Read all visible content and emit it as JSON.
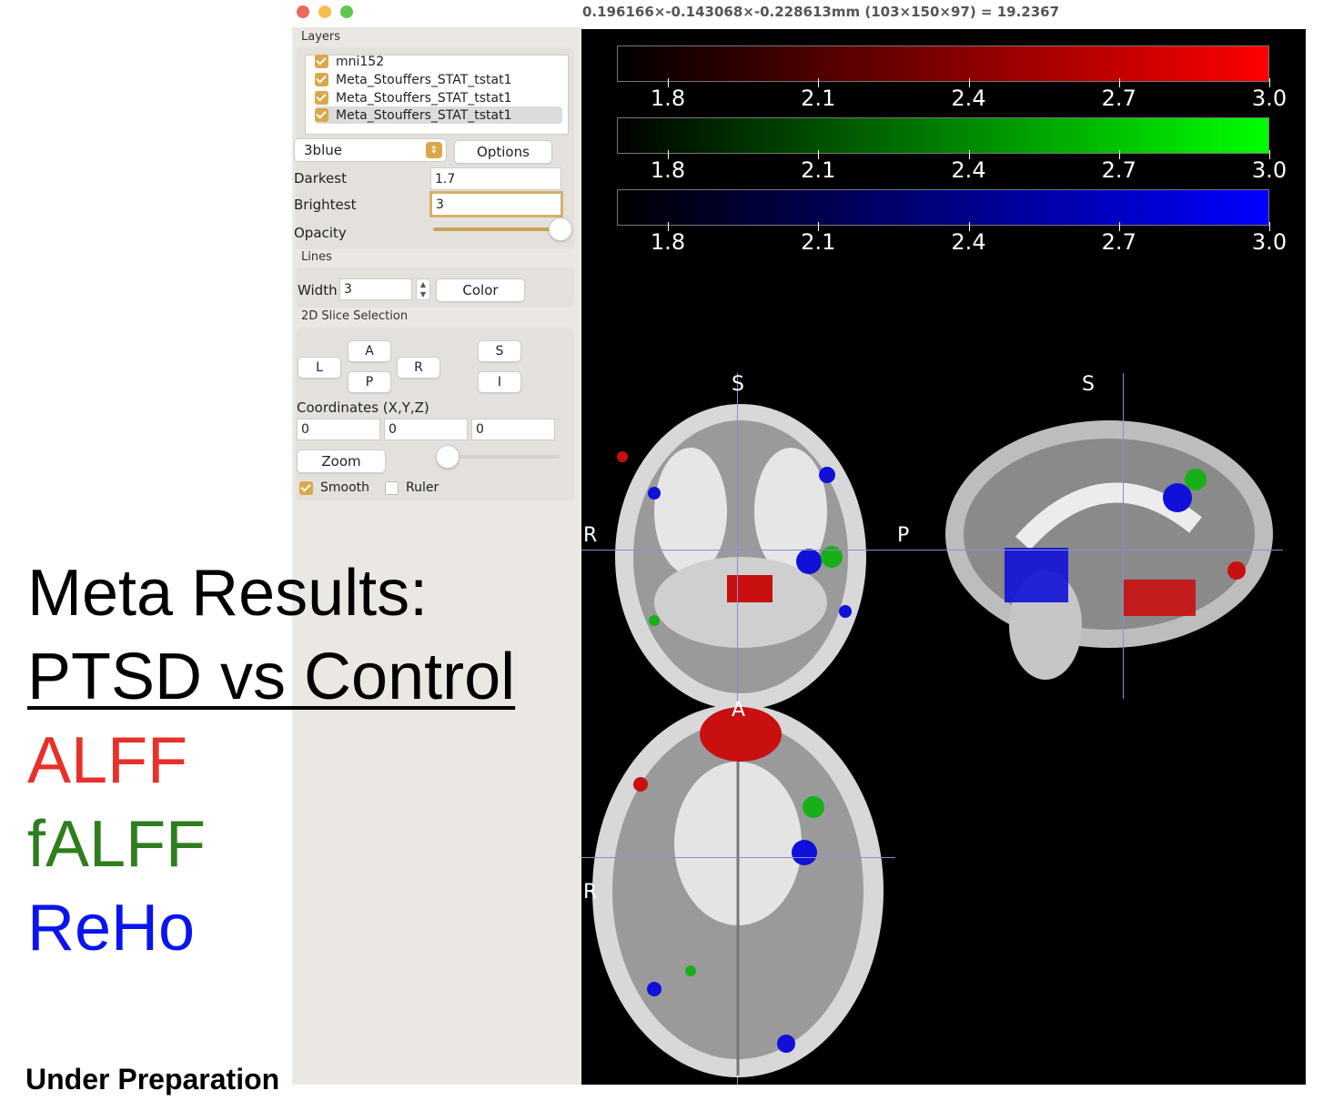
{
  "window": {
    "title": "0.196166×-0.143068×-0.228613mm (103×150×97) = 19.2367"
  },
  "layers": {
    "section_title": "Layers",
    "items": [
      {
        "label": "mni152",
        "checked": true,
        "selected": false
      },
      {
        "label": "Meta_Stouffers_STAT_tstat1",
        "checked": true,
        "selected": false
      },
      {
        "label": "Meta_Stouffers_STAT_tstat1",
        "checked": true,
        "selected": false
      },
      {
        "label": "Meta_Stouffers_STAT_tstat1",
        "checked": true,
        "selected": true
      }
    ],
    "colormap": "3blue",
    "options_label": "Options",
    "darkest_label": "Darkest",
    "darkest_value": "1.7",
    "brightest_label": "Brightest",
    "brightest_value": "3",
    "opacity_label": "Opacity",
    "opacity_level": 1.0
  },
  "lines": {
    "section_title": "Lines",
    "width_label": "Width",
    "width_value": "3",
    "color_label": "Color"
  },
  "slice": {
    "section_title": "2D Slice Selection",
    "buttons": {
      "L": "L",
      "A": "A",
      "P": "P",
      "R": "R",
      "S": "S",
      "I": "I"
    },
    "coords_label": "Coordinates (X,Y,Z)",
    "x": "0",
    "y": "0",
    "z": "0",
    "zoom_label": "Zoom",
    "zoom_level": 0.0,
    "smooth_label": "Smooth",
    "smooth_checked": true,
    "ruler_label": "Ruler",
    "ruler_checked": false
  },
  "colorbars": [
    {
      "color": "#ff0000",
      "ticks": [
        "1.8",
        "2.1",
        "2.4",
        "2.7",
        "3.0"
      ]
    },
    {
      "color": "#00ff00",
      "ticks": [
        "1.8",
        "2.1",
        "2.4",
        "2.7",
        "3.0"
      ]
    },
    {
      "color": "#0000ff",
      "ticks": [
        "1.8",
        "2.1",
        "2.4",
        "2.7",
        "3.0"
      ]
    }
  ],
  "orientation": {
    "coronal_top": "S",
    "coronal_left": "R",
    "sagittal_top": "S",
    "sagittal_left": "P",
    "axial_top": "A",
    "axial_left": "R"
  },
  "slide": {
    "heading": "Meta Results:",
    "subheading": "PTSD vs Control",
    "items": [
      {
        "label": "ALFF",
        "color": "#e8302a"
      },
      {
        "label": "fALFF",
        "color": "#2f7d1e"
      },
      {
        "label": "ReHo",
        "color": "#0a14f0"
      }
    ],
    "footer": "Under Preparation"
  }
}
